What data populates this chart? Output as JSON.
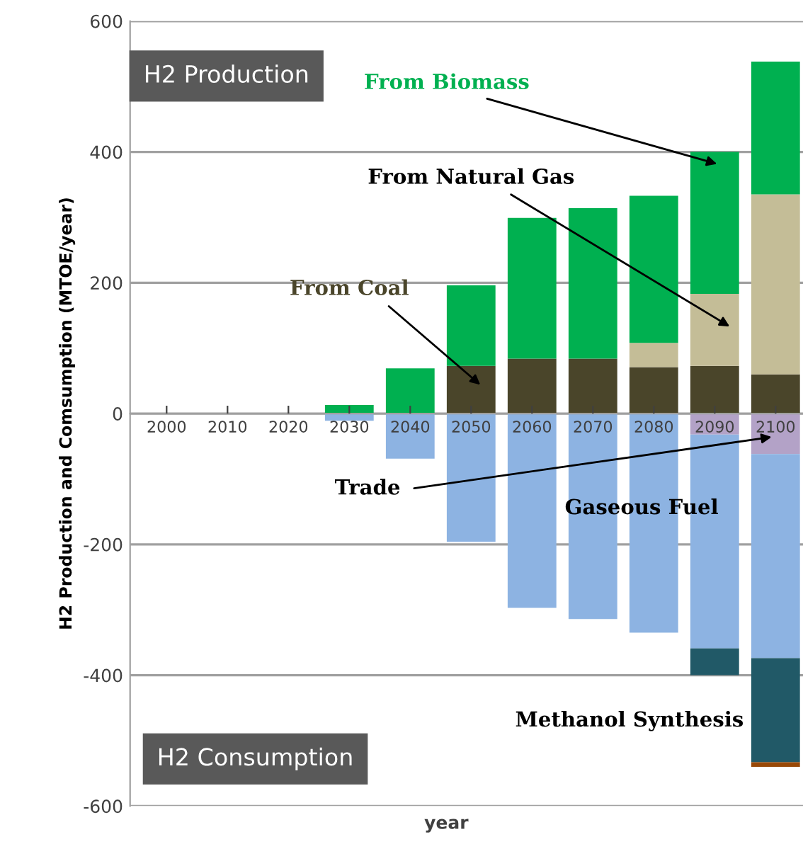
{
  "chart_data": {
    "type": "bar",
    "stacked": true,
    "categories": [
      "2000",
      "2010",
      "2020",
      "2030",
      "2040",
      "2050",
      "2060",
      "2070",
      "2080",
      "2090",
      "2100"
    ],
    "series": [
      {
        "name": "From Coal",
        "color": "#4a452a",
        "values": [
          0,
          0,
          0,
          0,
          0,
          73,
          84,
          84,
          71,
          73,
          60
        ]
      },
      {
        "name": "From Natural Gas",
        "color": "#c4bd97",
        "values": [
          0,
          0,
          0,
          0,
          0,
          0,
          0,
          0,
          37,
          110,
          275
        ]
      },
      {
        "name": "From Biomass",
        "color": "#00b050",
        "values": [
          0,
          0,
          0,
          13,
          69,
          123,
          215,
          230,
          225,
          217,
          203
        ]
      },
      {
        "name": "Trade",
        "color": "#b3a2c7",
        "values": [
          0,
          0,
          0,
          0,
          0,
          0,
          0,
          0,
          0,
          -32,
          -62
        ]
      },
      {
        "name": "Gaseous Fuel",
        "color": "#8db3e2",
        "values": [
          0,
          0,
          0,
          -11,
          -69,
          -196,
          -297,
          -314,
          -335,
          -327,
          -312
        ]
      },
      {
        "name": "Methanol Synthesis",
        "color": "#215967",
        "values": [
          0,
          0,
          0,
          0,
          0,
          0,
          0,
          0,
          0,
          -41,
          -159
        ]
      },
      {
        "color": "#984807",
        "values": [
          0,
          0,
          0,
          0,
          0,
          0,
          0,
          0,
          0,
          0,
          -7
        ]
      }
    ],
    "xlabel": "year",
    "ylabel": "H2 Production and Comsumption (MTOE/year)",
    "ylim": [
      -600,
      600
    ],
    "yticks": [
      -600,
      -400,
      -200,
      0,
      200,
      400,
      600
    ],
    "grid": "y",
    "legend": false,
    "annotations": [
      "H2 Production",
      "H2 Consumption"
    ]
  }
}
